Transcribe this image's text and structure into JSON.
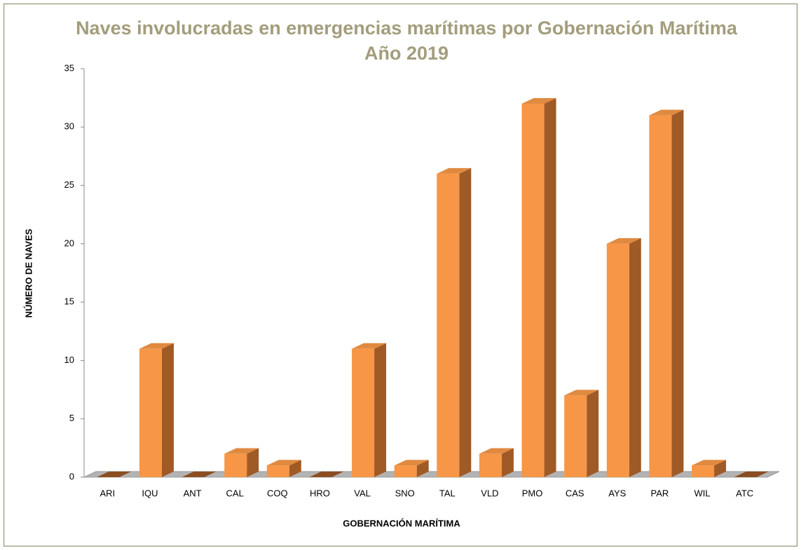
{
  "chart_data": {
    "type": "bar3d",
    "title": "Naves involucradas en emergencias marítimas  por Gobernación Marítima",
    "subtitle": "Año 2019",
    "x_label": "GOBERNACIÓN MARÍTIMA",
    "y_label": "NÚMERO DE NAVES",
    "categories": [
      "ARI",
      "IQU",
      "ANT",
      "CAL",
      "COQ",
      "HRO",
      "VAL",
      "SNO",
      "TAL",
      "VLD",
      "PMO",
      "CAS",
      "AYS",
      "PAR",
      "WIL",
      "ATC"
    ],
    "values": [
      0,
      11,
      0,
      2,
      1,
      0,
      11,
      1,
      26,
      2,
      32,
      7,
      20,
      31,
      1,
      0
    ],
    "color": "#f79646",
    "ylim": [
      0,
      35
    ],
    "yticks": [
      0,
      5,
      10,
      15,
      20,
      25,
      30,
      35
    ],
    "grid": false
  }
}
